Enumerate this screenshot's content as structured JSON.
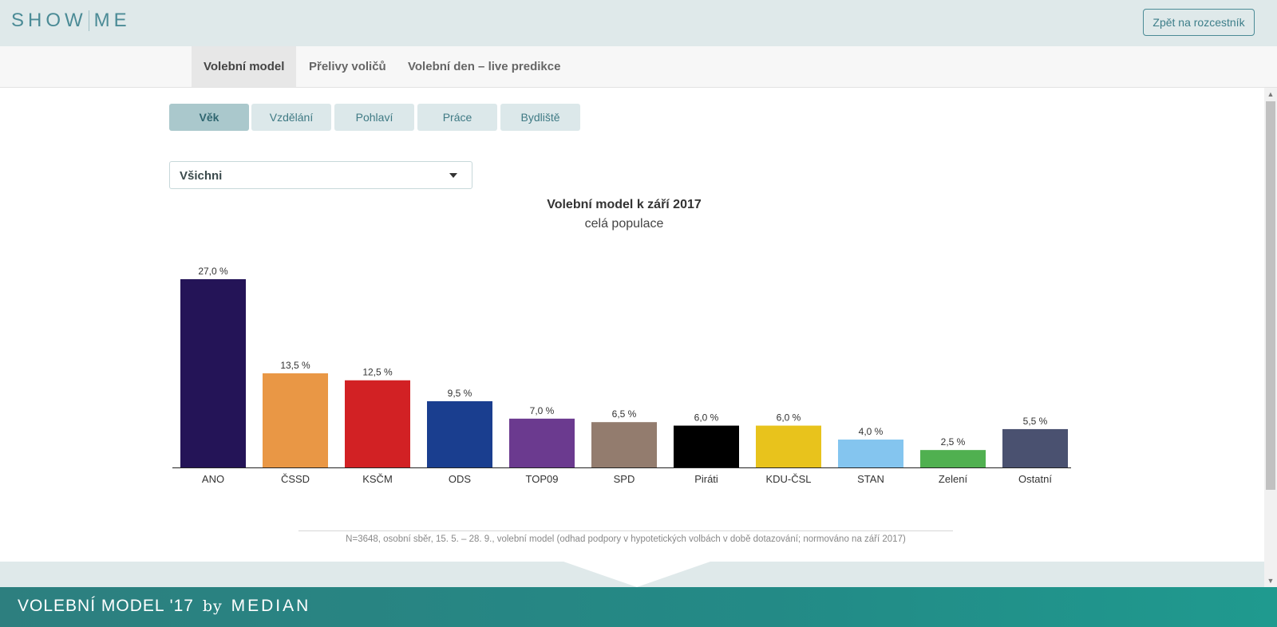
{
  "header": {
    "logo_left": "SHOW",
    "logo_right": "ME",
    "back_button": "Zpět na rozcestník"
  },
  "nav": {
    "tabs": [
      {
        "label": "Volební model",
        "active": true
      },
      {
        "label": "Přelivy voličů",
        "active": false
      },
      {
        "label": "Volební den – live predikce",
        "active": false
      }
    ]
  },
  "filters": {
    "categories": [
      {
        "label": "Věk",
        "active": true
      },
      {
        "label": "Vzdělání",
        "active": false
      },
      {
        "label": "Pohlaví",
        "active": false
      },
      {
        "label": "Práce",
        "active": false
      },
      {
        "label": "Bydliště",
        "active": false
      }
    ],
    "dropdown_value": "Všichni"
  },
  "chart_data": {
    "type": "bar",
    "title": "Volební model k září 2017",
    "subtitle": "celá populace",
    "categories": [
      "ANO",
      "ČSSD",
      "KSČM",
      "ODS",
      "TOP09",
      "SPD",
      "Piráti",
      "KDU-ČSL",
      "STAN",
      "Zelení",
      "Ostatní"
    ],
    "values": [
      27.0,
      13.5,
      12.5,
      9.5,
      7.0,
      6.5,
      6.0,
      6.0,
      4.0,
      2.5,
      5.5
    ],
    "value_labels": [
      "27,0 %",
      "13,5 %",
      "12,5 %",
      "9,5 %",
      "7,0 %",
      "6,5 %",
      "6,0 %",
      "6,0 %",
      "4,0 %",
      "2,5 %",
      "5,5 %"
    ],
    "colors": [
      "#241457",
      "#e99745",
      "#d22124",
      "#1a3e8f",
      "#6b3a8f",
      "#937c6e",
      "#000000",
      "#e8c31c",
      "#84c5ef",
      "#50b050",
      "#4a5170"
    ],
    "xlabel": "",
    "ylabel": "",
    "grid": false
  },
  "footnote": "N=3648, osobní sběr, 15. 5. – 28. 9., volební model (odhad podpory v hypotetických volbách v době dotazování; normováno na září 2017)",
  "footer": {
    "title": "VOLEBNÍ MODEL '17",
    "by": "by",
    "brand": "MEDIAN"
  }
}
